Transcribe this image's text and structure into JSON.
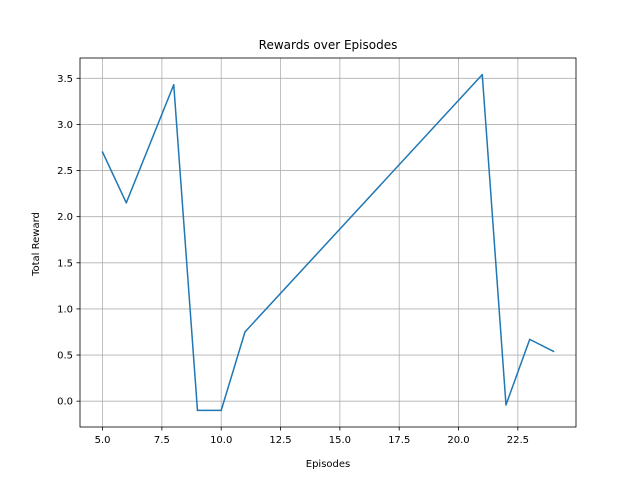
{
  "chart_data": {
    "type": "line",
    "title": "Rewards over Episodes",
    "xlabel": "Episodes",
    "ylabel": "Total Reward",
    "grid": true,
    "xlim": [
      4.05,
      24.95
    ],
    "ylim": [
      -0.28,
      3.72
    ],
    "xticks": [
      5.0,
      7.5,
      10.0,
      12.5,
      15.0,
      17.5,
      20.0,
      22.5
    ],
    "xtick_labels": [
      "5.0",
      "7.5",
      "10.0",
      "12.5",
      "15.0",
      "17.5",
      "20.0",
      "22.5"
    ],
    "yticks": [
      0.0,
      0.5,
      1.0,
      1.5,
      2.0,
      2.5,
      3.0,
      3.5
    ],
    "ytick_labels": [
      "0.0",
      "0.5",
      "1.0",
      "1.5",
      "2.0",
      "2.5",
      "3.0",
      "3.5"
    ],
    "series": [
      {
        "color": "#1f77b4",
        "x": [
          5,
          6,
          8,
          9,
          10,
          11,
          21,
          22,
          23,
          24
        ],
        "y": [
          2.7,
          2.15,
          3.43,
          -0.1,
          -0.1,
          0.75,
          3.54,
          -0.04,
          0.67,
          0.54
        ]
      }
    ]
  }
}
